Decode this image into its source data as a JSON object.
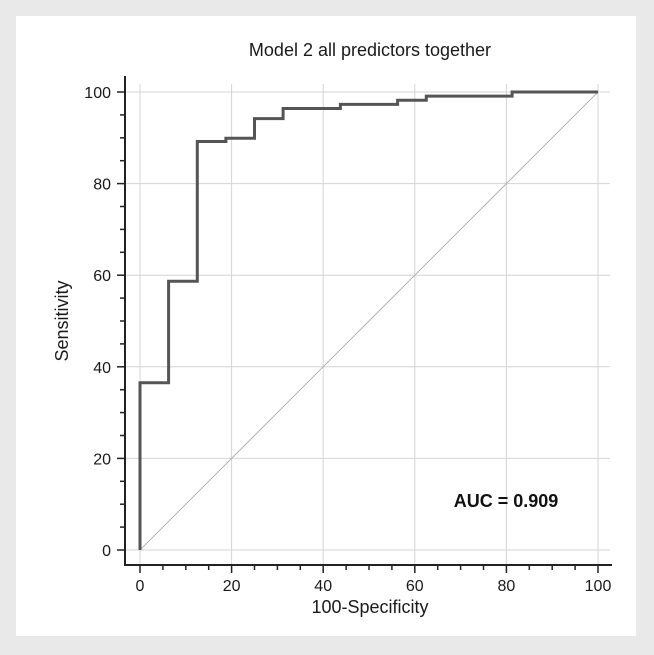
{
  "chart_data": {
    "type": "line",
    "title": "Model 2 all predictors together",
    "xlabel": "100-Specificity",
    "ylabel": "Sensitivity",
    "xlim": [
      0,
      100
    ],
    "ylim": [
      0,
      100
    ],
    "x_ticks": [
      "0",
      "20",
      "40",
      "60",
      "80",
      "100"
    ],
    "y_ticks": [
      "0",
      "20",
      "40",
      "60",
      "80",
      "100"
    ],
    "grid": true,
    "annotation": "AUC = 0.909",
    "series": [
      {
        "style": "step",
        "color": "#555555",
        "x": [
          0,
          0,
          6.25,
          6.25,
          12.5,
          12.5,
          18.75,
          18.75,
          25,
          25,
          31.25,
          31.25,
          43.75,
          43.75,
          56.25,
          56.25,
          62.5,
          62.5,
          81.25,
          81.25,
          100
        ],
        "y": [
          0,
          36.5,
          36.5,
          58.7,
          58.7,
          89.2,
          89.2,
          89.9,
          89.9,
          94.2,
          94.2,
          96.4,
          96.4,
          97.3,
          97.3,
          98.2,
          98.2,
          99.1,
          99.1,
          100,
          100
        ]
      },
      {
        "style": "reference",
        "color": "#b5b5b5",
        "x": [
          0,
          100
        ],
        "y": [
          0,
          100
        ]
      }
    ]
  }
}
